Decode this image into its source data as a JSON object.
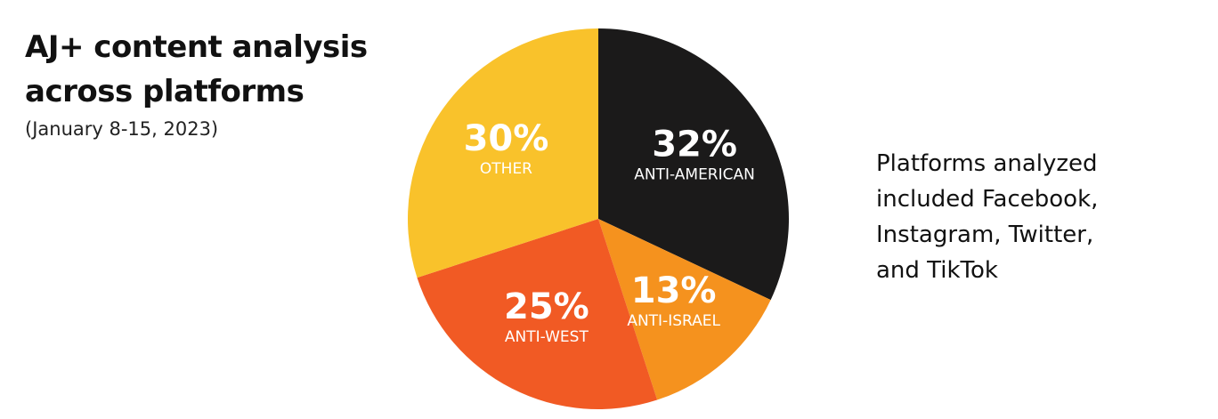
{
  "title": {
    "line1": "AJ+ content analysis",
    "line2": "across platforms"
  },
  "subtitle": "(January 8-15, 2023)",
  "note": {
    "lines": [
      "Platforms analyzed",
      "included Facebook,",
      "Instagram, Twitter,",
      "and TikTok"
    ]
  },
  "chart_data": {
    "type": "pie",
    "title": "AJ+ content analysis across platforms",
    "subtitle": "(January 8-15, 2023)",
    "start": "12 o'clock",
    "direction": "clockwise",
    "slices": [
      {
        "label": "ANTI-AMERICAN",
        "value": 32,
        "value_label": "32%",
        "color": "#1b1a1a"
      },
      {
        "label": "ANTI-ISRAEL",
        "value": 13,
        "value_label": "13%",
        "color": "#f5921e"
      },
      {
        "label": "ANTI-WEST",
        "value": 25,
        "value_label": "25%",
        "color": "#f15a24"
      },
      {
        "label": "OTHER",
        "value": 30,
        "value_label": "30%",
        "color": "#f9c22b"
      }
    ]
  }
}
